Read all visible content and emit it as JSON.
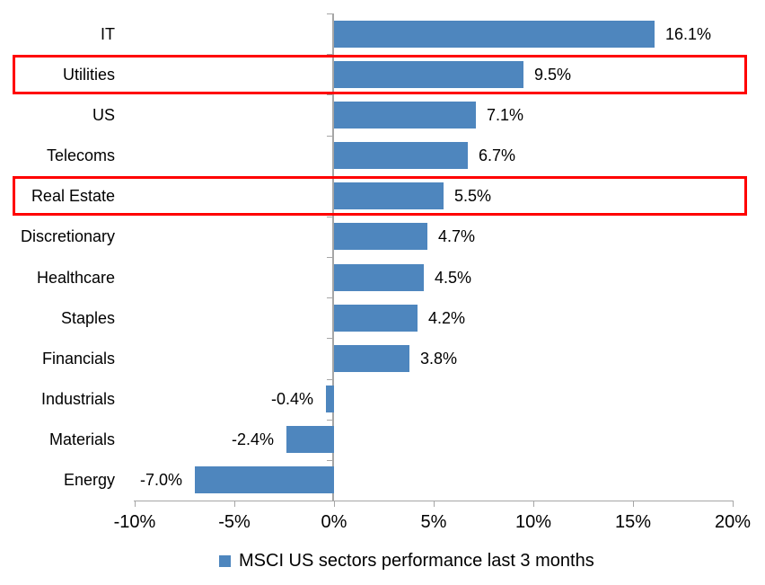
{
  "chart_data": {
    "type": "bar",
    "orientation": "horizontal",
    "title": "",
    "categories": [
      "IT",
      "Utilities",
      "US",
      "Telecoms",
      "Real Estate",
      "Discretionary",
      "Healthcare",
      "Staples",
      "Financials",
      "Industrials",
      "Materials",
      "Energy"
    ],
    "values": [
      16.1,
      9.5,
      7.1,
      6.7,
      5.5,
      4.7,
      4.5,
      4.2,
      3.8,
      -0.4,
      -2.4,
      -7.0
    ],
    "value_labels": [
      "16.1%",
      "9.5%",
      "7.1%",
      "6.7%",
      "5.5%",
      "4.7%",
      "4.5%",
      "4.2%",
      "3.8%",
      "-0.4%",
      "-2.4%",
      "-7.0%"
    ],
    "xlim": [
      -10,
      20
    ],
    "x_tick_values": [
      -10,
      -5,
      0,
      5,
      10,
      15,
      20
    ],
    "x_ticks": [
      "-10%",
      "-5%",
      "0%",
      "5%",
      "10%",
      "15%",
      "20%"
    ],
    "grid": "off",
    "legend": "MSCI US sectors performance last 3 months",
    "legend_position": "bottom",
    "highlighted_categories": [
      "Utilities",
      "Real Estate"
    ],
    "bar_color": "#4E86BE",
    "highlight_border_color": "#FF0000",
    "axis_color": "#A6A6A6",
    "text_color": "#000000"
  }
}
